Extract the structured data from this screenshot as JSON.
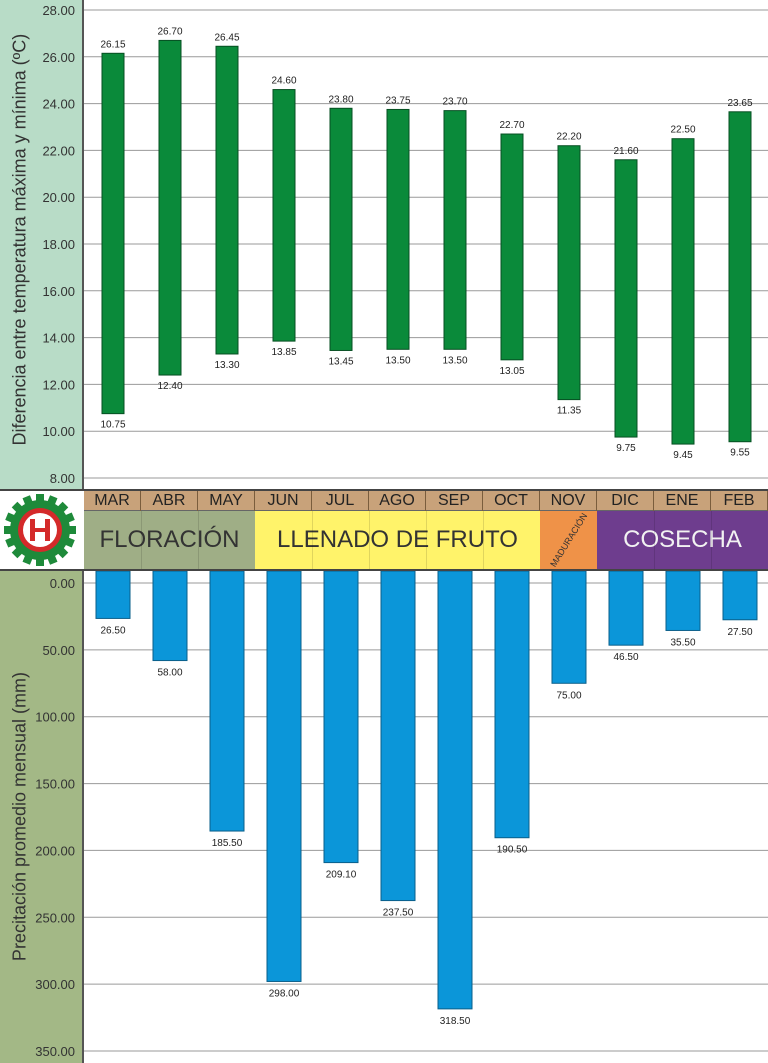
{
  "colors": {
    "temp_bar": "#0a8a3a",
    "precip_bar": "#0b96d9",
    "temp_panel": "#b8dcc7",
    "precip_panel": "#a3b886",
    "month_row": "#c8a27a",
    "floracion": "#9fae86",
    "llenado": "#fff36a",
    "maduracion": "#ef9248",
    "cosecha": "#6e3d8e"
  },
  "band": {
    "logo_icon": "gear-emblem-icon",
    "months": [
      "MAR",
      "ABR",
      "MAY",
      "JUN",
      "JUL",
      "AGO",
      "SEP",
      "OCT",
      "NOV",
      "DIC",
      "ENE",
      "FEB"
    ],
    "phases": [
      {
        "label": "FLORACIÓN",
        "months": 3
      },
      {
        "label": "LLENADO DE FRUTO",
        "months": 5
      },
      {
        "label": "MADURACIÓN",
        "months": 1
      },
      {
        "label": "COSECHA",
        "months": 3
      }
    ]
  },
  "chart_data": [
    {
      "type": "bar",
      "subtype": "floating-range",
      "title": "",
      "ylabel": "Diferencia entre temperatura máxima y mínima (ºC)",
      "xlabel": "",
      "categories": [
        "MAR",
        "ABR",
        "MAY",
        "JUN",
        "JUL",
        "AGO",
        "SEP",
        "OCT",
        "NOV",
        "DIC",
        "ENE",
        "FEB"
      ],
      "series": [
        {
          "role": "high",
          "values": [
            26.15,
            26.7,
            26.45,
            24.6,
            23.8,
            23.75,
            23.7,
            22.7,
            22.2,
            21.6,
            22.5,
            23.65
          ],
          "labels": [
            "26.15",
            "26.70",
            "26.45",
            "24.60",
            "23.80",
            "23.75",
            "23.70",
            "22.70",
            "22.20",
            "21.60",
            "22.50",
            "23.65"
          ]
        },
        {
          "role": "low",
          "values": [
            10.75,
            12.4,
            13.3,
            13.85,
            13.45,
            13.5,
            13.5,
            13.05,
            11.35,
            9.75,
            9.45,
            9.55
          ],
          "labels": [
            "10.75",
            "12.40",
            "13.30",
            "13.85",
            "13.45",
            "13.50",
            "13.50",
            "13.05",
            "11.35",
            "9.75",
            "9.45",
            "9.55"
          ]
        }
      ],
      "ylim": [
        8,
        28
      ],
      "yticks": [
        "8.00",
        "10.00",
        "12.00",
        "14.00",
        "16.00",
        "18.00",
        "20.00",
        "22.00",
        "24.00",
        "26.00",
        "28.00"
      ],
      "grid": true
    },
    {
      "type": "bar",
      "subtype": "inverted-y",
      "title": "",
      "ylabel": "Precitación promedio mensual (mm)",
      "xlabel": "",
      "categories": [
        "MAR",
        "ABR",
        "MAY",
        "JUN",
        "JUL",
        "AGO",
        "SEP",
        "OCT",
        "NOV",
        "DIC",
        "ENE",
        "FEB"
      ],
      "values": [
        26.5,
        58.0,
        185.5,
        298.0,
        209.1,
        237.5,
        318.5,
        190.5,
        75.0,
        46.5,
        35.5,
        27.5
      ],
      "labels": [
        "26.50",
        "58.00",
        "185.50",
        "298.00",
        "209.10",
        "237.50",
        "318.50",
        "190.50",
        "75.00",
        "46.50",
        "35.50",
        "27.50"
      ],
      "ylim": [
        0,
        350
      ],
      "yticks": [
        "0.00",
        "50.00",
        "100.00",
        "150.00",
        "200.00",
        "250.00",
        "300.00",
        "350.00"
      ],
      "grid": true
    }
  ]
}
